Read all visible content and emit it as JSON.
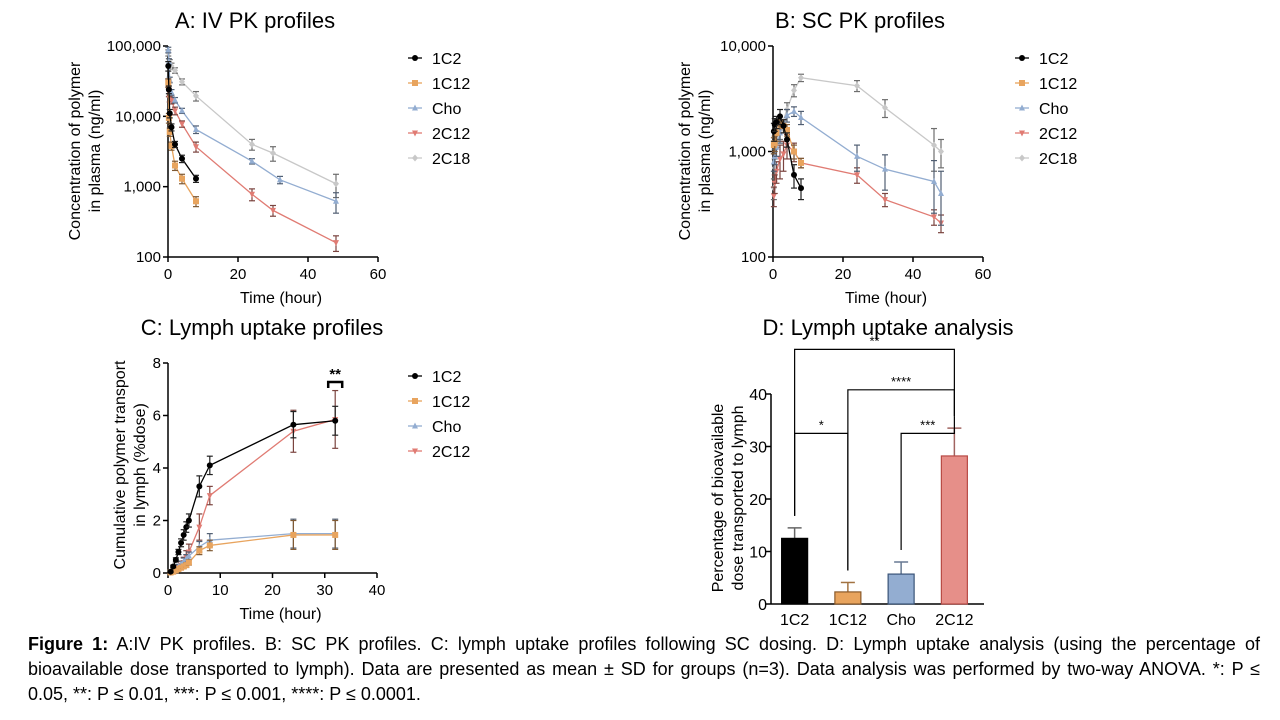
{
  "chart_data": [
    {
      "id": "A",
      "type": "line",
      "title": "A: IV PK profiles",
      "xlabel": "Time (hour)",
      "ylabel": [
        "Concentration of polymer",
        "in plasma (ng/ml)"
      ],
      "xlim": [
        0,
        60
      ],
      "ylim": [
        100,
        100000
      ],
      "yscale": "log",
      "xticks": [
        "0",
        "20",
        "40",
        "60"
      ],
      "yticks": [
        "100",
        "1,000",
        "10,000",
        "100,000"
      ],
      "legend": "right",
      "series": [
        {
          "name": "1C2",
          "color": "#000000",
          "marker": "circle",
          "x": [
            0.083,
            0.25,
            0.5,
            1,
            2,
            4,
            8
          ],
          "y": [
            52000,
            24000,
            11000,
            7000,
            4000,
            2500,
            1300
          ],
          "err": [
            8000,
            3000,
            1500,
            800,
            400,
            300,
            150
          ]
        },
        {
          "name": "1C12",
          "color": "#E8A45E",
          "marker": "square",
          "x": [
            0.083,
            0.25,
            0.5,
            1,
            2,
            4,
            8
          ],
          "y": [
            30000,
            9500,
            6000,
            3800,
            2000,
            1300,
            620
          ],
          "err": [
            4000,
            1500,
            800,
            500,
            300,
            200,
            100
          ]
        },
        {
          "name": "Cho",
          "color": "#93ADD1",
          "marker": "triangle-up",
          "x": [
            0.083,
            0.25,
            0.5,
            1,
            2,
            4,
            8,
            24,
            32,
            48
          ],
          "y": [
            88000,
            60000,
            33000,
            22000,
            17000,
            12000,
            6500,
            2300,
            1250,
            620
          ],
          "err": [
            8000,
            6000,
            3000,
            2000,
            1500,
            1000,
            800,
            200,
            150,
            200
          ]
        },
        {
          "name": "2C12",
          "color": "#E07B73",
          "marker": "triangle-down",
          "x": [
            0.083,
            0.25,
            0.5,
            1,
            2,
            4,
            8,
            24,
            30,
            48
          ],
          "y": [
            30000,
            22000,
            18000,
            17000,
            12000,
            7800,
            3700,
            780,
            460,
            160
          ],
          "err": [
            4000,
            3000,
            2000,
            2000,
            1500,
            800,
            600,
            150,
            80,
            40
          ]
        },
        {
          "name": "2C18",
          "color": "#C8C8C8",
          "marker": "diamond",
          "x": [
            0.083,
            0.5,
            1,
            2,
            4,
            8,
            24,
            30,
            48
          ],
          "y": [
            80000,
            58000,
            52000,
            45000,
            31000,
            19500,
            4000,
            3000,
            1100
          ],
          "err": [
            8000,
            6000,
            5000,
            4000,
            3000,
            3000,
            700,
            700,
            400
          ]
        }
      ]
    },
    {
      "id": "B",
      "type": "line",
      "title": "B: SC PK profiles",
      "xlabel": "Time (hour)",
      "ylabel": [
        "Concentration of polymer",
        "in plasma (ng/ml)"
      ],
      "xlim": [
        0,
        60
      ],
      "ylim": [
        100,
        10000
      ],
      "yscale": "log",
      "xticks": [
        "0",
        "20",
        "40",
        "60"
      ],
      "yticks": [
        "100",
        "1,000",
        "10,000"
      ],
      "legend": "right",
      "series": [
        {
          "name": "1C2",
          "color": "#000000",
          "marker": "circle",
          "x": [
            0.25,
            0.5,
            1,
            2,
            3,
            4,
            6,
            8
          ],
          "y": [
            1550,
            1800,
            1900,
            2150,
            1750,
            1300,
            600,
            450
          ],
          "err": [
            300,
            250,
            250,
            350,
            250,
            200,
            150,
            100
          ]
        },
        {
          "name": "1C12",
          "color": "#E8A45E",
          "marker": "square",
          "x": [
            0.25,
            0.5,
            1,
            2,
            3,
            4,
            6,
            8
          ],
          "y": [
            1150,
            1200,
            1500,
            1900,
            1750,
            1600,
            1000,
            780
          ],
          "err": [
            200,
            200,
            250,
            250,
            250,
            200,
            150,
            80
          ]
        },
        {
          "name": "Cho",
          "color": "#93ADD1",
          "marker": "triangle-up",
          "x": [
            0.25,
            0.5,
            1,
            2,
            4,
            6,
            8,
            24,
            32,
            46,
            48
          ],
          "y": [
            800,
            900,
            1100,
            1500,
            2200,
            2400,
            2100,
            900,
            680,
            520,
            400
          ],
          "err": [
            150,
            150,
            200,
            300,
            300,
            250,
            300,
            250,
            250,
            300,
            250
          ]
        },
        {
          "name": "2C12",
          "color": "#E07B73",
          "marker": "triangle-down",
          "x": [
            0.25,
            0.5,
            1,
            2,
            3,
            4,
            6,
            8,
            24,
            32,
            46,
            48
          ],
          "y": [
            380,
            500,
            650,
            850,
            950,
            1150,
            1000,
            780,
            600,
            350,
            240,
            210
          ],
          "err": [
            80,
            100,
            150,
            300,
            300,
            300,
            200,
            80,
            100,
            50,
            40,
            40
          ]
        },
        {
          "name": "2C18",
          "color": "#C8C8C8",
          "marker": "diamond",
          "x": [
            0.25,
            0.5,
            1,
            2,
            4,
            6,
            8,
            24,
            32,
            46,
            48
          ],
          "y": [
            450,
            700,
            1300,
            1600,
            2500,
            3800,
            5000,
            4200,
            2600,
            1150,
            1000
          ],
          "err": [
            100,
            150,
            200,
            300,
            400,
            500,
            400,
            500,
            500,
            500,
            300
          ]
        }
      ]
    },
    {
      "id": "C",
      "type": "line",
      "title": "C: Lymph uptake profiles",
      "xlabel": "Time (hour)",
      "ylabel": [
        "Cumulative polymer transport",
        "in lymph (%dose)"
      ],
      "xlim": [
        0,
        40
      ],
      "ylim": [
        0,
        8
      ],
      "yscale": "linear",
      "xticks": [
        "0",
        "10",
        "20",
        "30",
        "40"
      ],
      "yticks": [
        "0",
        "2",
        "4",
        "6",
        "8"
      ],
      "legend": "right",
      "annotation": {
        "text": "**",
        "x": 32
      },
      "series": [
        {
          "name": "1C2",
          "color": "#000000",
          "marker": "circle",
          "x": [
            0.5,
            1,
            1.5,
            2,
            2.5,
            3,
            3.5,
            4,
            6,
            8,
            24,
            32
          ],
          "y": [
            0.05,
            0.25,
            0.5,
            0.8,
            1.15,
            1.45,
            1.75,
            2.0,
            3.3,
            4.1,
            5.65,
            5.8
          ],
          "err": [
            0.03,
            0.05,
            0.08,
            0.1,
            0.15,
            0.2,
            0.2,
            0.25,
            0.4,
            0.35,
            0.5,
            0.55
          ]
        },
        {
          "name": "1C12",
          "color": "#E8A45E",
          "marker": "square",
          "x": [
            0.5,
            1,
            1.5,
            2,
            2.5,
            3,
            3.5,
            4,
            6,
            8,
            24,
            32
          ],
          "y": [
            0.02,
            0.05,
            0.1,
            0.15,
            0.2,
            0.25,
            0.3,
            0.4,
            0.85,
            1.05,
            1.45,
            1.45
          ],
          "err": [
            0.02,
            0.03,
            0.04,
            0.05,
            0.06,
            0.08,
            0.08,
            0.1,
            0.15,
            0.2,
            0.55,
            0.55
          ]
        },
        {
          "name": "Cho",
          "color": "#93ADD1",
          "marker": "triangle-up",
          "x": [
            0.5,
            1,
            1.5,
            2,
            2.5,
            3,
            3.5,
            4,
            6,
            8,
            24,
            32
          ],
          "y": [
            0.03,
            0.08,
            0.15,
            0.25,
            0.35,
            0.45,
            0.55,
            0.65,
            1.0,
            1.25,
            1.5,
            1.5
          ],
          "err": [
            0.02,
            0.04,
            0.05,
            0.08,
            0.1,
            0.12,
            0.15,
            0.15,
            0.2,
            0.25,
            0.55,
            0.55
          ]
        },
        {
          "name": "2C12",
          "color": "#E07B73",
          "marker": "triangle-down",
          "x": [
            0.5,
            1,
            1.5,
            2,
            2.5,
            3,
            3.5,
            4,
            6,
            8,
            24,
            32
          ],
          "y": [
            0.02,
            0.05,
            0.1,
            0.2,
            0.3,
            0.4,
            0.6,
            0.8,
            1.75,
            2.95,
            5.4,
            5.85
          ],
          "err": [
            0.02,
            0.04,
            0.05,
            0.1,
            0.15,
            0.2,
            0.25,
            0.3,
            0.5,
            0.35,
            0.8,
            1.1
          ]
        }
      ]
    },
    {
      "id": "D",
      "type": "bar",
      "title": "D: Lymph uptake analysis",
      "xlabel": "",
      "ylabel": [
        "Percentage of bioavailable",
        "dose transported to lymph"
      ],
      "ylim": [
        0,
        40
      ],
      "yticks": [
        "0",
        "10",
        "20",
        "30",
        "40"
      ],
      "categories": [
        "1C2",
        "1C12",
        "Cho",
        "2C12"
      ],
      "values": [
        12.5,
        2.3,
        5.7,
        28.2
      ],
      "errors": [
        2.0,
        1.8,
        2.3,
        5.3
      ],
      "colors": [
        "#000000",
        "#E8A45E",
        "#93ADD1",
        "#E68F89"
      ],
      "edge_colors": [
        "#000000",
        "#8A5A2A",
        "#3A5478",
        "#B84A45"
      ],
      "significance": [
        {
          "from": 0,
          "to": 1,
          "label": "*"
        },
        {
          "from": 2,
          "to": 3,
          "label": "***"
        },
        {
          "from": 1,
          "to": 3,
          "label": "****"
        },
        {
          "from": 0,
          "to": 3,
          "label": "**"
        }
      ]
    }
  ],
  "caption": {
    "label": "Figure 1:",
    "text": " A:IV PK profiles. B: SC PK profiles. C: lymph uptake profiles following SC dosing. D:  Lymph uptake analysis (using the percentage of bioavailable dose transported to lymph). Data are presented as mean ± SD for groups (n=3). Data analysis was performed by two-way ANOVA.  *: P ≤ 0.05, **: P ≤ 0.01, ***: P ≤ 0.001, ****: P ≤ 0.0001."
  }
}
